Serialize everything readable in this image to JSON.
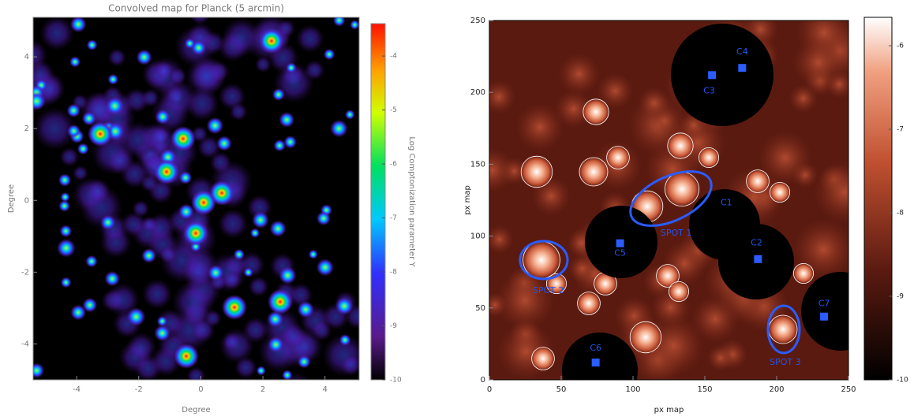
{
  "chart_data": [
    {
      "type": "heatmap",
      "title": "Convolved map for Planck (5 arcmin)",
      "xlabel": "Degree",
      "ylabel": "Degree",
      "xlim": [
        -5.4,
        5.1
      ],
      "ylim": [
        -5,
        5.1
      ],
      "xticks": [
        -4,
        -2,
        0,
        2,
        4
      ],
      "yticks": [
        -4,
        -2,
        0,
        2,
        4
      ],
      "colorbar": {
        "label": "Log Comptonization parameter Y",
        "lim": [
          -10,
          -3.4
        ],
        "ticks": [
          -4,
          -5,
          -6,
          -7,
          -8,
          -9,
          -10
        ]
      }
    },
    {
      "type": "heatmap",
      "xlabel": "px map",
      "ylabel": "px map",
      "xlim": [
        0,
        250
      ],
      "ylim": [
        0,
        250
      ],
      "xticks": [
        0,
        50,
        100,
        150,
        200,
        250
      ],
      "yticks": [
        0,
        50,
        100,
        150,
        200,
        250
      ],
      "colorbar": {
        "lim": [
          -10,
          -5.66
        ],
        "ticks": [
          -6,
          -7,
          -8,
          -9,
          -10
        ]
      },
      "labels": [
        {
          "text": "C1",
          "x": 165,
          "y": 123
        },
        {
          "text": "C2",
          "x": 186,
          "y": 95
        },
        {
          "text": "C3",
          "x": 153,
          "y": 201
        },
        {
          "text": "C4",
          "x": 176,
          "y": 228
        },
        {
          "text": "C5",
          "x": 91,
          "y": 88
        },
        {
          "text": "C6",
          "x": 74,
          "y": 22
        },
        {
          "text": "C7",
          "x": 233,
          "y": 53
        },
        {
          "text": "SPOT 1",
          "x": 130,
          "y": 102
        },
        {
          "text": "SPOT 2",
          "x": 41,
          "y": 62
        },
        {
          "text": "SPOT 3",
          "x": 206,
          "y": 12
        }
      ],
      "markers": [
        {
          "x": 155,
          "y": 212
        },
        {
          "x": 176,
          "y": 217
        },
        {
          "x": 91,
          "y": 95
        },
        {
          "x": 187,
          "y": 84
        },
        {
          "x": 233,
          "y": 44
        },
        {
          "x": 74,
          "y": 12
        }
      ]
    }
  ]
}
